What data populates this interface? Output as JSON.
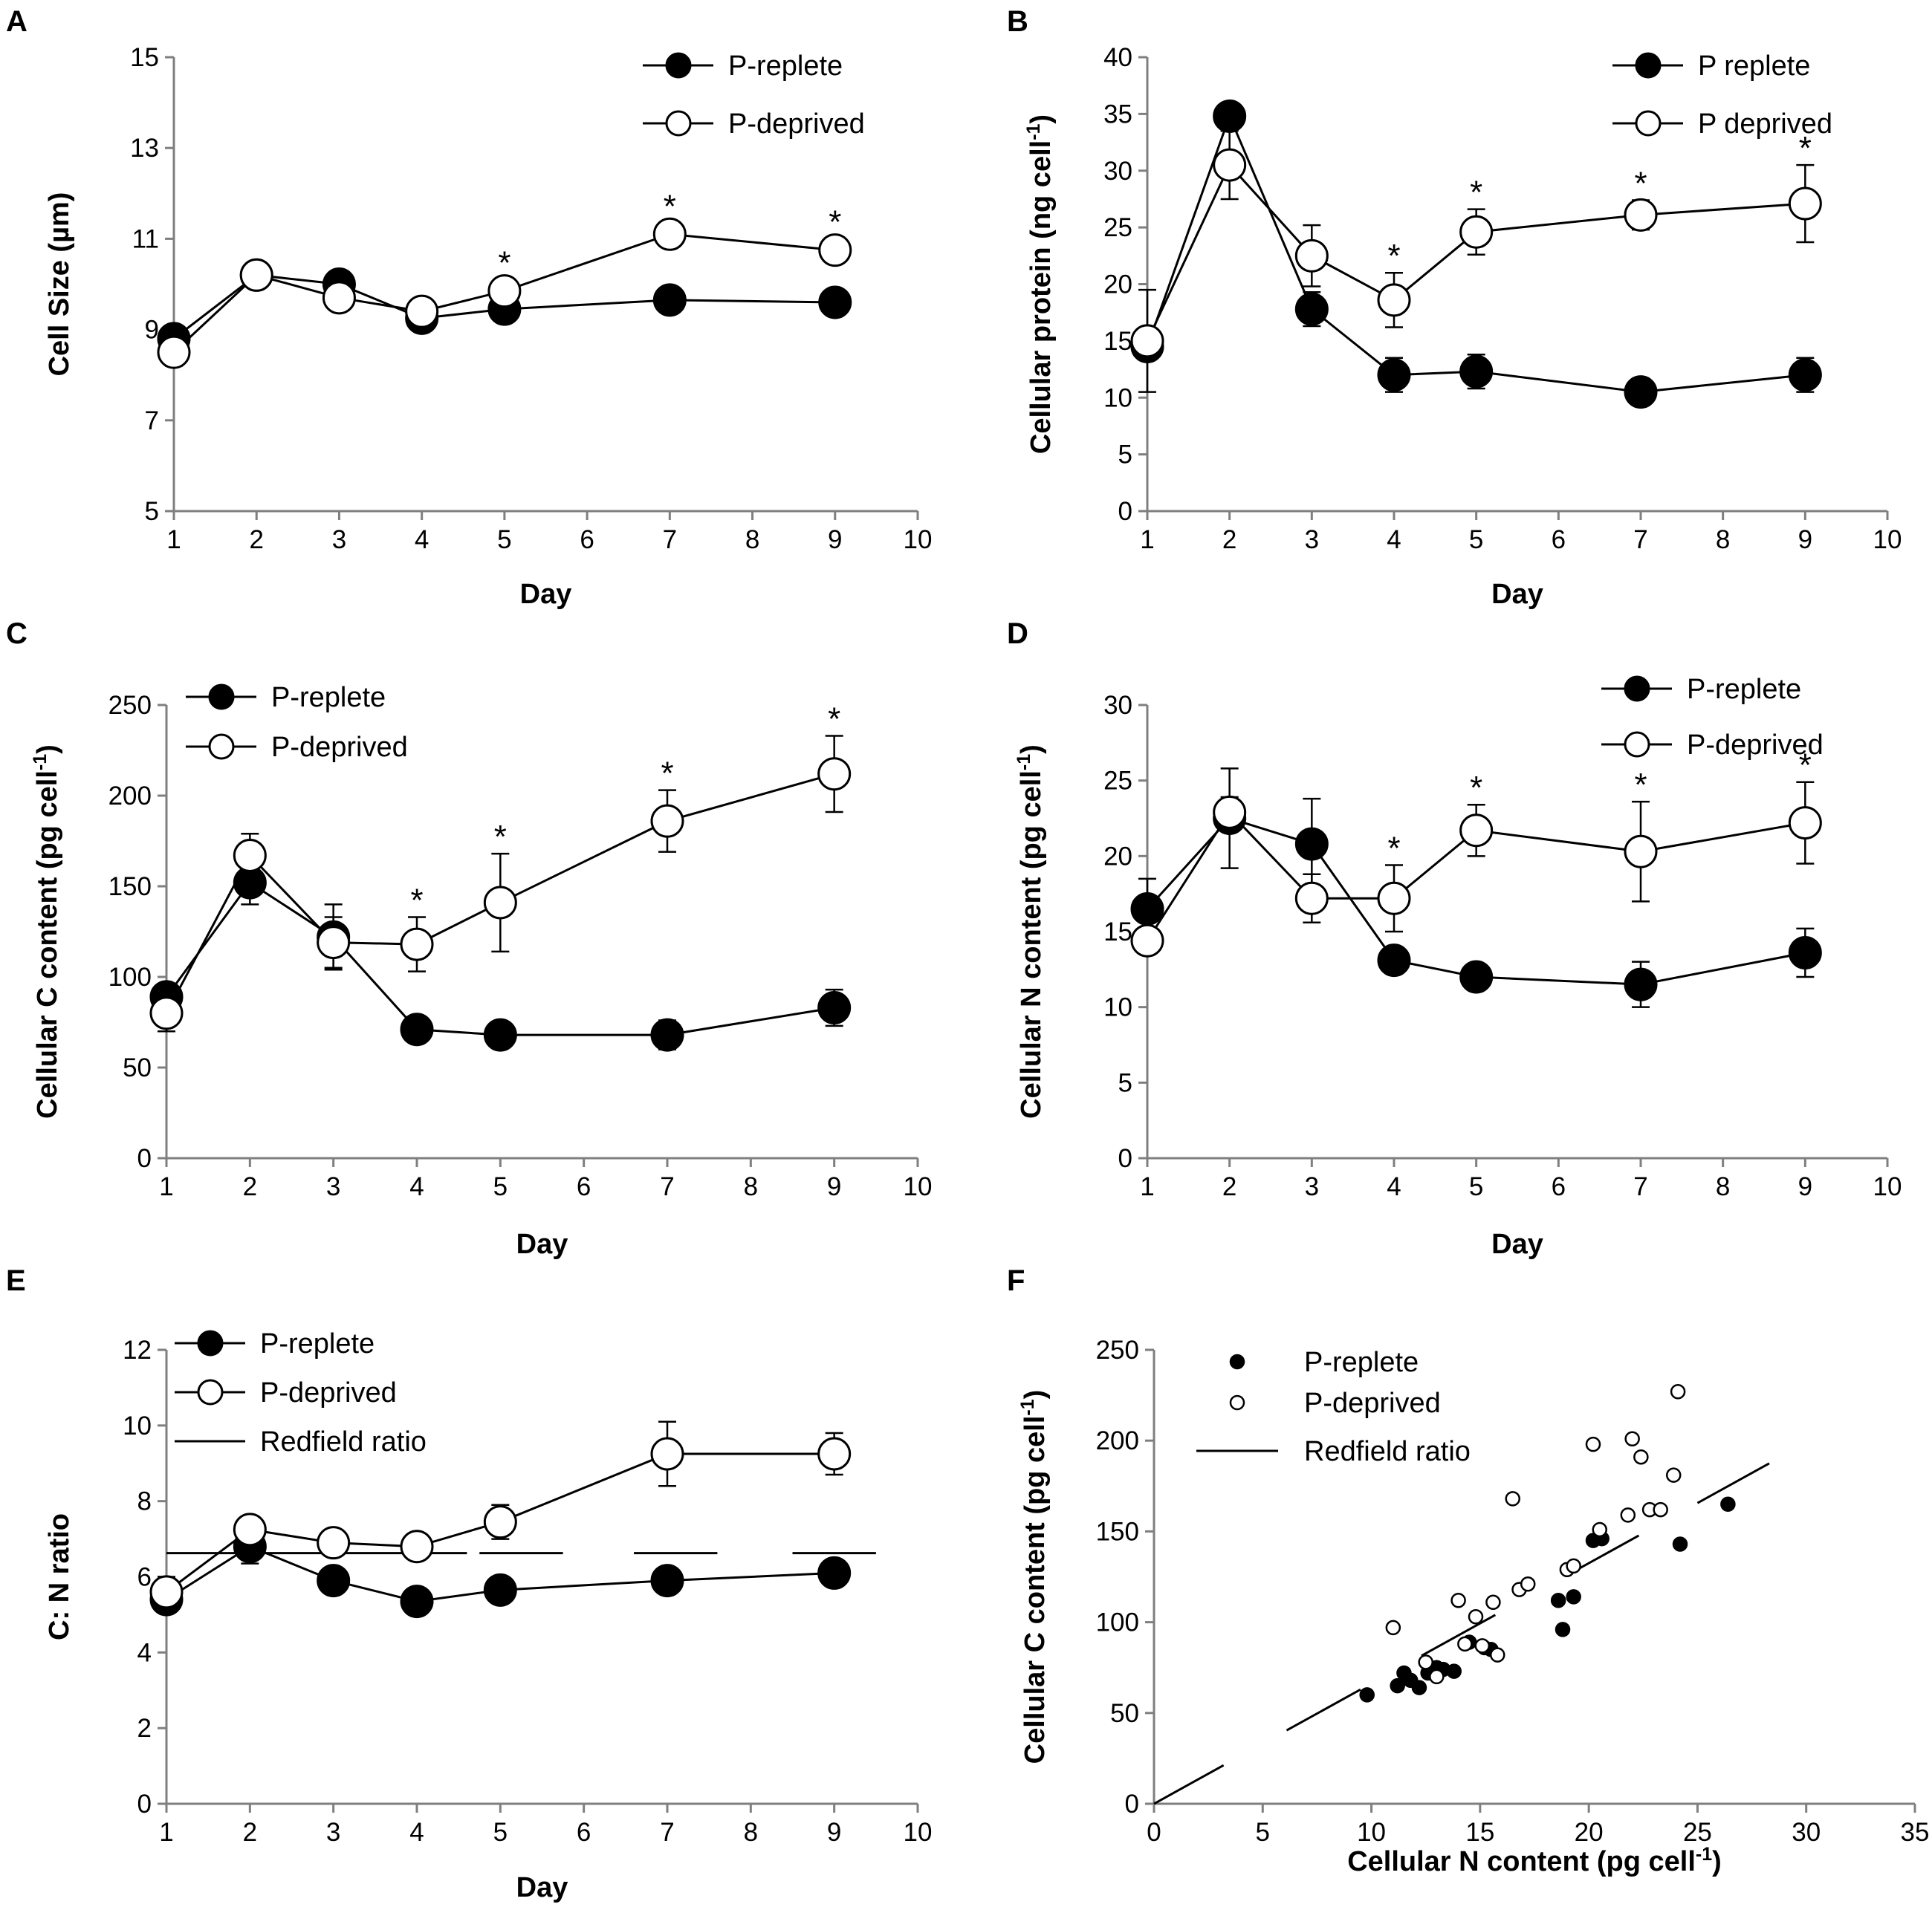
{
  "chart_data": [
    {
      "id": "A",
      "type": "line",
      "panel_label": "A",
      "xlabel": "Day",
      "ylabel": "Cell Size (µm)",
      "xlim": [
        1,
        10
      ],
      "ylim": [
        5,
        15
      ],
      "xticks": [
        1,
        2,
        3,
        4,
        5,
        6,
        7,
        8,
        9,
        10
      ],
      "yticks": [
        5,
        7,
        9,
        11,
        13,
        15
      ],
      "legend_position": "top-right",
      "series": [
        {
          "name": "P-replete",
          "marker": "filled",
          "x": [
            1,
            2,
            3,
            4,
            5,
            7,
            9
          ],
          "y": [
            8.8,
            10.2,
            10.0,
            9.25,
            9.45,
            9.65,
            9.6
          ],
          "err": [
            0.1,
            0.1,
            0.15,
            0.1,
            0.1,
            0.05,
            0.05
          ]
        },
        {
          "name": "P-deprived",
          "marker": "open",
          "x": [
            1,
            2,
            3,
            4,
            5,
            7,
            9
          ],
          "y": [
            8.5,
            10.2,
            9.7,
            9.4,
            9.85,
            11.1,
            10.75
          ],
          "err": [
            0.3,
            0.1,
            0.15,
            0.1,
            0.1,
            0.08,
            0.1
          ]
        }
      ],
      "significance": [
        {
          "x": 5,
          "label": "*"
        },
        {
          "x": 7,
          "label": "*"
        },
        {
          "x": 9,
          "label": "*"
        }
      ]
    },
    {
      "id": "B",
      "type": "line",
      "panel_label": "B",
      "xlabel": "Day",
      "ylabel_main": "Cellular protein (ng cell",
      "ylabel_sup": "-1",
      "ylabel_end": ")",
      "xlim": [
        1,
        10
      ],
      "ylim": [
        0,
        40
      ],
      "xticks": [
        1,
        2,
        3,
        4,
        5,
        6,
        7,
        8,
        9,
        10
      ],
      "yticks": [
        0,
        5,
        10,
        15,
        20,
        25,
        30,
        35,
        40
      ],
      "legend_position": "top-right",
      "series": [
        {
          "name": "P replete",
          "marker": "filled",
          "x": [
            1,
            2,
            3,
            4,
            5,
            7,
            9
          ],
          "y": [
            14.5,
            34.8,
            17.8,
            12.0,
            12.3,
            10.5,
            12.0
          ],
          "err": [
            1.0,
            0.8,
            1.5,
            1.5,
            1.5,
            0.7,
            1.5
          ]
        },
        {
          "name": "P deprived",
          "marker": "open",
          "x": [
            1,
            2,
            3,
            4,
            5,
            7,
            9
          ],
          "y": [
            15.0,
            30.5,
            22.5,
            18.6,
            24.6,
            26.1,
            27.1
          ],
          "err": [
            4.5,
            3.0,
            2.7,
            2.4,
            2.0,
            1.3,
            3.4
          ]
        }
      ],
      "significance": [
        {
          "x": 4,
          "label": "*"
        },
        {
          "x": 5,
          "label": "*"
        },
        {
          "x": 7,
          "label": "*"
        },
        {
          "x": 9,
          "label": "*"
        }
      ]
    },
    {
      "id": "C",
      "type": "line",
      "panel_label": "C",
      "xlabel": "Day",
      "ylabel_main": "Cellular C content (pg cell",
      "ylabel_sup": "-1",
      "ylabel_end": ")",
      "xlim": [
        1,
        10
      ],
      "ylim": [
        0,
        250
      ],
      "xticks": [
        1,
        2,
        3,
        4,
        5,
        6,
        7,
        8,
        9,
        10
      ],
      "yticks": [
        0,
        50,
        100,
        150,
        200,
        250
      ],
      "legend_position": "top-left",
      "series": [
        {
          "name": "P-replete",
          "marker": "filled",
          "x": [
            1,
            2,
            3,
            4,
            5,
            7,
            9
          ],
          "y": [
            89,
            152,
            122,
            71,
            68,
            68,
            83
          ],
          "err": [
            5,
            12,
            18,
            4,
            4,
            8,
            10
          ]
        },
        {
          "name": "P-deprived",
          "marker": "open",
          "x": [
            1,
            2,
            3,
            4,
            5,
            7,
            9
          ],
          "y": [
            80,
            167,
            119,
            118,
            141,
            186,
            212
          ],
          "err": [
            10,
            12,
            14,
            15,
            27,
            17,
            21
          ]
        }
      ],
      "significance": [
        {
          "x": 4,
          "label": "*"
        },
        {
          "x": 5,
          "label": "*"
        },
        {
          "x": 7,
          "label": "*"
        },
        {
          "x": 9,
          "label": "*"
        }
      ]
    },
    {
      "id": "D",
      "type": "line",
      "panel_label": "D",
      "xlabel": "Day",
      "ylabel_main": "Cellular N content (pg cell",
      "ylabel_sup": "-1",
      "ylabel_end": ")",
      "xlim": [
        1,
        10
      ],
      "ylim": [
        0,
        30
      ],
      "xticks": [
        1,
        2,
        3,
        4,
        5,
        6,
        7,
        8,
        9,
        10
      ],
      "yticks": [
        0,
        5,
        10,
        15,
        20,
        25,
        30
      ],
      "legend_position": "top-right",
      "series": [
        {
          "name": "P-replete",
          "marker": "filled",
          "x": [
            1,
            2,
            3,
            4,
            5,
            7,
            9
          ],
          "y": [
            16.5,
            22.5,
            20.8,
            13.1,
            12.0,
            11.5,
            13.6
          ],
          "err": [
            2.0,
            3.3,
            3.0,
            0.5,
            0.5,
            1.5,
            1.6
          ]
        },
        {
          "name": "P-deprived",
          "marker": "open",
          "x": [
            1,
            2,
            3,
            4,
            5,
            7,
            9
          ],
          "y": [
            14.4,
            22.9,
            17.2,
            17.2,
            21.7,
            20.3,
            22.2
          ],
          "err": [
            0.6,
            1.0,
            1.6,
            2.2,
            1.7,
            3.3,
            2.7
          ]
        }
      ],
      "significance": [
        {
          "x": 4,
          "label": "*"
        },
        {
          "x": 5,
          "label": "*"
        },
        {
          "x": 7,
          "label": "*"
        },
        {
          "x": 9,
          "label": "*"
        }
      ]
    },
    {
      "id": "E",
      "type": "line",
      "panel_label": "E",
      "xlabel": "Day",
      "ylabel": "C: N ratio",
      "xlim": [
        1,
        10
      ],
      "ylim": [
        0,
        12
      ],
      "xticks": [
        1,
        2,
        3,
        4,
        5,
        6,
        7,
        8,
        9,
        10
      ],
      "yticks": [
        0,
        2,
        4,
        6,
        8,
        10,
        12
      ],
      "legend_position": "top-left",
      "series": [
        {
          "name": "P-replete",
          "marker": "filled",
          "x": [
            1,
            2,
            3,
            4,
            5,
            7,
            9
          ],
          "y": [
            5.4,
            6.8,
            5.9,
            5.35,
            5.65,
            5.9,
            6.1
          ],
          "err": [
            0.3,
            0.45,
            0.1,
            0.1,
            0.1,
            0.1,
            0.1
          ]
        },
        {
          "name": "P-deprived",
          "marker": "open",
          "x": [
            1,
            2,
            3,
            4,
            5,
            7,
            9
          ],
          "y": [
            5.6,
            7.25,
            6.9,
            6.8,
            7.45,
            9.25,
            9.25
          ],
          "err": [
            0.4,
            0.2,
            0.2,
            0.1,
            0.45,
            0.85,
            0.55
          ]
        }
      ],
      "redfield": {
        "name": "Redfield ratio",
        "value": 6.625,
        "segments": [
          [
            1,
            4.6
          ],
          [
            4.75,
            5.75
          ],
          [
            6.6,
            7.6
          ],
          [
            8.5,
            9.5
          ]
        ]
      },
      "significance": []
    },
    {
      "id": "F",
      "type": "scatter",
      "panel_label": "F",
      "xlabel_main": "Cellular N content (pg cell",
      "xlabel_sup": "-1",
      "xlabel_end": ")",
      "ylabel_main": "Cellular C content (pg cell",
      "ylabel_sup": "-1",
      "ylabel_end": ")",
      "xlim": [
        0,
        35
      ],
      "ylim": [
        0,
        250
      ],
      "xticks": [
        0,
        5,
        10,
        15,
        20,
        25,
        30,
        35
      ],
      "yticks": [
        0,
        50,
        100,
        150,
        200,
        250
      ],
      "legend_position": "top-left",
      "series": [
        {
          "name": "P-replete",
          "marker": "filled",
          "x": [
            9.8,
            11.2,
            11.5,
            11.8,
            12.2,
            12.6,
            13.0,
            13.3,
            13.8,
            14.5,
            15.2,
            15.5,
            18.6,
            18.8,
            19.3,
            20.2,
            20.6,
            24.2,
            26.4
          ],
          "y": [
            60,
            65,
            72,
            68,
            64,
            72,
            75,
            74,
            73,
            89,
            86,
            85,
            112,
            96,
            114,
            145,
            146,
            143,
            165
          ]
        },
        {
          "name": "P-deprived",
          "marker": "open",
          "x": [
            11.0,
            12.5,
            13.0,
            14.0,
            14.3,
            14.8,
            15.1,
            15.6,
            15.8,
            16.5,
            16.8,
            17.2,
            19.0,
            19.3,
            20.2,
            20.5,
            21.8,
            22.0,
            22.4,
            22.8,
            23.3,
            23.9,
            24.1
          ],
          "y": [
            97,
            78,
            70,
            112,
            88,
            103,
            87,
            111,
            82,
            168,
            118,
            121,
            129,
            131,
            198,
            151,
            159,
            201,
            191,
            162,
            162,
            181,
            227
          ]
        }
      ],
      "redfield": {
        "name": "Redfield ratio",
        "slope": 6.625,
        "segments": [
          [
            0,
            3.2
          ],
          [
            6.1,
            9.5
          ],
          [
            12.3,
            15.7
          ],
          [
            18.9,
            22.3
          ],
          [
            25.0,
            28.3
          ]
        ]
      }
    }
  ]
}
